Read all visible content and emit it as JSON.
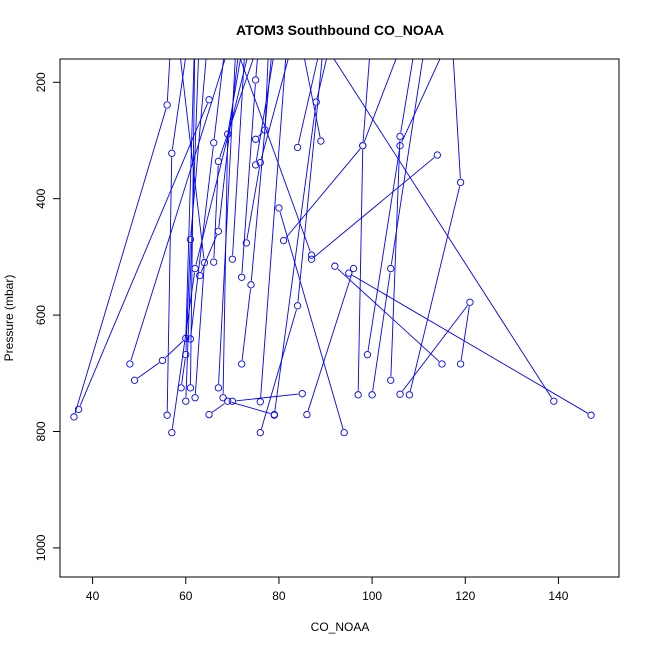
{
  "chart_data": {
    "type": "line",
    "title": "ATOM3 Southbound CO_NOAA",
    "xlabel": "CO_NOAA",
    "ylabel": "Pressure (mbar)",
    "xlim": [
      33,
      153
    ],
    "ylim": [
      1050,
      160
    ],
    "y_reversed": true,
    "x_ticks": [
      40,
      60,
      80,
      100,
      120,
      140
    ],
    "y_ticks": [
      200,
      400,
      600,
      800,
      1000
    ],
    "grid": false,
    "legend": "none",
    "colors": {
      "series": "#0000ff",
      "axes": "#000000",
      "background": "#ffffff"
    },
    "series": [
      {
        "values": [
          [
            36,
            775
          ],
          [
            56,
            239
          ],
          [
            57,
            100
          ]
        ]
      },
      {
        "values": [
          [
            37,
            762
          ],
          [
            65,
            230
          ]
        ]
      },
      {
        "values": [
          [
            48,
            684
          ],
          [
            70,
            120
          ]
        ]
      },
      {
        "values": [
          [
            49,
            712
          ],
          [
            55,
            678
          ],
          [
            60,
            640
          ],
          [
            62,
            100
          ]
        ]
      },
      {
        "values": [
          [
            56,
            772
          ],
          [
            57,
            322
          ],
          [
            61,
            100
          ]
        ]
      },
      {
        "values": [
          [
            57,
            802
          ],
          [
            62,
            520
          ],
          [
            75,
            100
          ]
        ]
      },
      {
        "values": [
          [
            59,
            725
          ],
          [
            60,
            668
          ],
          [
            61,
            470
          ],
          [
            65,
            100
          ]
        ]
      },
      {
        "values": [
          [
            60,
            748
          ],
          [
            63,
            100
          ]
        ]
      },
      {
        "values": [
          [
            61,
            641
          ],
          [
            66,
            304
          ],
          [
            69,
            100
          ]
        ]
      },
      {
        "values": [
          [
            61,
            725
          ],
          [
            62,
            100
          ]
        ]
      },
      {
        "values": [
          [
            62,
            742
          ],
          [
            64,
            510
          ],
          [
            58,
            100
          ]
        ]
      },
      {
        "values": [
          [
            63,
            532
          ],
          [
            67,
            456
          ],
          [
            72,
            100
          ]
        ]
      },
      {
        "values": [
          [
            65,
            771
          ],
          [
            69,
            748
          ],
          [
            79,
            771
          ]
        ]
      },
      {
        "values": [
          [
            66,
            509
          ],
          [
            67,
            336
          ],
          [
            77,
            100
          ]
        ]
      },
      {
        "values": [
          [
            67,
            725
          ],
          [
            71,
            100
          ]
        ]
      },
      {
        "values": [
          [
            68,
            742
          ],
          [
            69,
            289
          ],
          [
            73,
            100
          ]
        ]
      },
      {
        "values": [
          [
            70,
            504
          ],
          [
            73,
            100
          ]
        ]
      },
      {
        "values": [
          [
            70,
            748
          ],
          [
            85,
            735
          ]
        ]
      },
      {
        "values": [
          [
            72,
            684
          ],
          [
            74,
            548
          ],
          [
            79,
            100
          ]
        ]
      },
      {
        "values": [
          [
            72,
            535
          ],
          [
            75,
            196
          ],
          [
            76,
            100
          ]
        ]
      },
      {
        "values": [
          [
            73,
            476
          ],
          [
            76,
            338
          ],
          [
            84,
            100
          ]
        ]
      },
      {
        "values": [
          [
            76,
            749
          ],
          [
            82,
            100
          ]
        ]
      },
      {
        "values": [
          [
            76,
            802
          ],
          [
            84,
            584
          ],
          [
            90,
            100
          ]
        ]
      },
      {
        "values": [
          [
            75,
            342
          ],
          [
            80,
            100
          ]
        ]
      },
      {
        "values": [
          [
            75,
            298
          ],
          [
            77,
            282
          ],
          [
            78,
            100
          ]
        ]
      },
      {
        "values": [
          [
            79,
            772
          ],
          [
            88,
            234
          ],
          [
            92,
            100
          ]
        ]
      },
      {
        "values": [
          [
            80,
            416
          ],
          [
            94,
            802
          ]
        ]
      },
      {
        "values": [
          [
            81,
            472
          ],
          [
            98,
            309
          ],
          [
            100,
            100
          ]
        ]
      },
      {
        "values": [
          [
            84,
            312
          ],
          [
            90,
            100
          ]
        ]
      },
      {
        "values": [
          [
            86,
            771
          ],
          [
            96,
            520
          ]
        ]
      },
      {
        "values": [
          [
            87,
            504
          ],
          [
            114,
            325
          ]
        ]
      },
      {
        "values": [
          [
            87,
            497
          ],
          [
            69,
            100
          ]
        ]
      },
      {
        "values": [
          [
            89,
            301
          ],
          [
            84,
            100
          ]
        ]
      },
      {
        "values": [
          [
            92,
            516
          ],
          [
            115,
            684
          ]
        ]
      },
      {
        "values": [
          [
            95,
            528
          ],
          [
            147,
            772
          ]
        ]
      },
      {
        "values": [
          [
            97,
            737
          ],
          [
            98,
            309
          ],
          [
            108,
            100
          ]
        ]
      },
      {
        "values": [
          [
            100,
            737
          ],
          [
            104,
            520
          ],
          [
            112,
            100
          ]
        ]
      },
      {
        "values": [
          [
            99,
            668
          ],
          [
            106,
            309
          ],
          [
            118,
            100
          ]
        ]
      },
      {
        "values": [
          [
            104,
            712
          ],
          [
            106,
            293
          ],
          [
            110,
            100
          ]
        ]
      },
      {
        "values": [
          [
            106,
            736
          ],
          [
            121,
            578
          ],
          [
            119,
            684
          ]
        ]
      },
      {
        "values": [
          [
            108,
            737
          ],
          [
            119,
            372
          ],
          [
            117,
            100
          ]
        ]
      },
      {
        "values": [
          [
            139,
            748
          ],
          [
            87,
            100
          ]
        ]
      }
    ]
  }
}
